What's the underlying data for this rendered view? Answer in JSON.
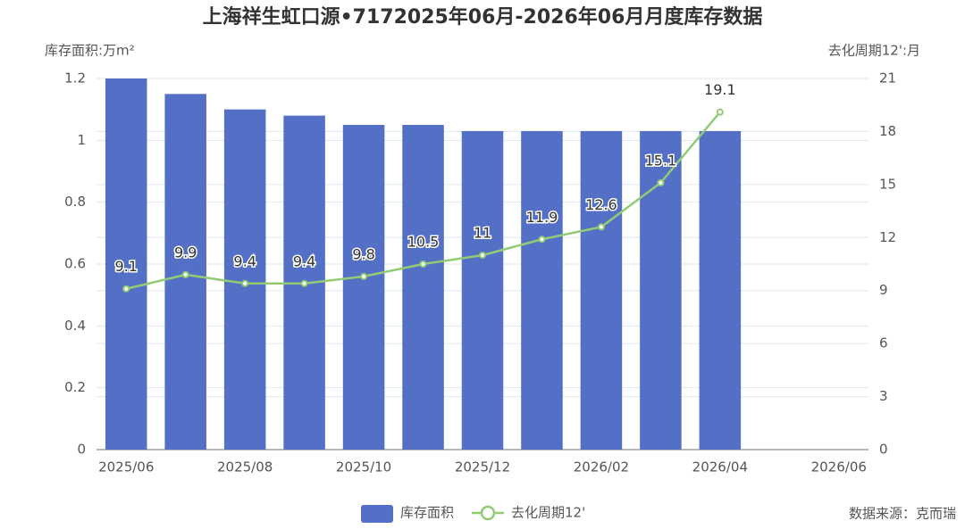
{
  "chart_data": {
    "type": "bar",
    "title": "上海祥生虹口源•7172025年06月-2026年06月月度库存数据",
    "y_label": "库存面积:万m²",
    "y2_label": "去化周期12':月",
    "source": "数据来源：克而瑞",
    "categories": [
      "2025/06",
      null,
      "2025/08",
      null,
      "2025/10",
      null,
      "2025/12",
      null,
      "2026/02",
      null,
      "2026/04",
      null,
      "2026/06"
    ],
    "series": [
      {
        "name": "库存面积",
        "type": "bar",
        "color": "#5470c6",
        "values": [
          1.2,
          1.15,
          1.1,
          1.08,
          1.05,
          1.05,
          1.03,
          1.03,
          1.03,
          1.03,
          1.03,
          null,
          null
        ]
      },
      {
        "name": "去化周期12'",
        "type": "line",
        "axis": "y2",
        "color": "#91cc75",
        "values": [
          9.1,
          9.9,
          9.4,
          9.4,
          9.8,
          10.5,
          11,
          11.9,
          12.6,
          15.1,
          19.1,
          null,
          null
        ]
      }
    ],
    "ylim": [
      0,
      1.2
    ],
    "yticks": [
      0,
      0.2,
      0.4,
      0.6,
      0.8,
      1,
      1.2
    ],
    "y2lim": [
      0,
      21
    ],
    "y2ticks": [
      0,
      3,
      6,
      9,
      12,
      15,
      18,
      21
    ],
    "grid": true,
    "legend": "bottom"
  }
}
